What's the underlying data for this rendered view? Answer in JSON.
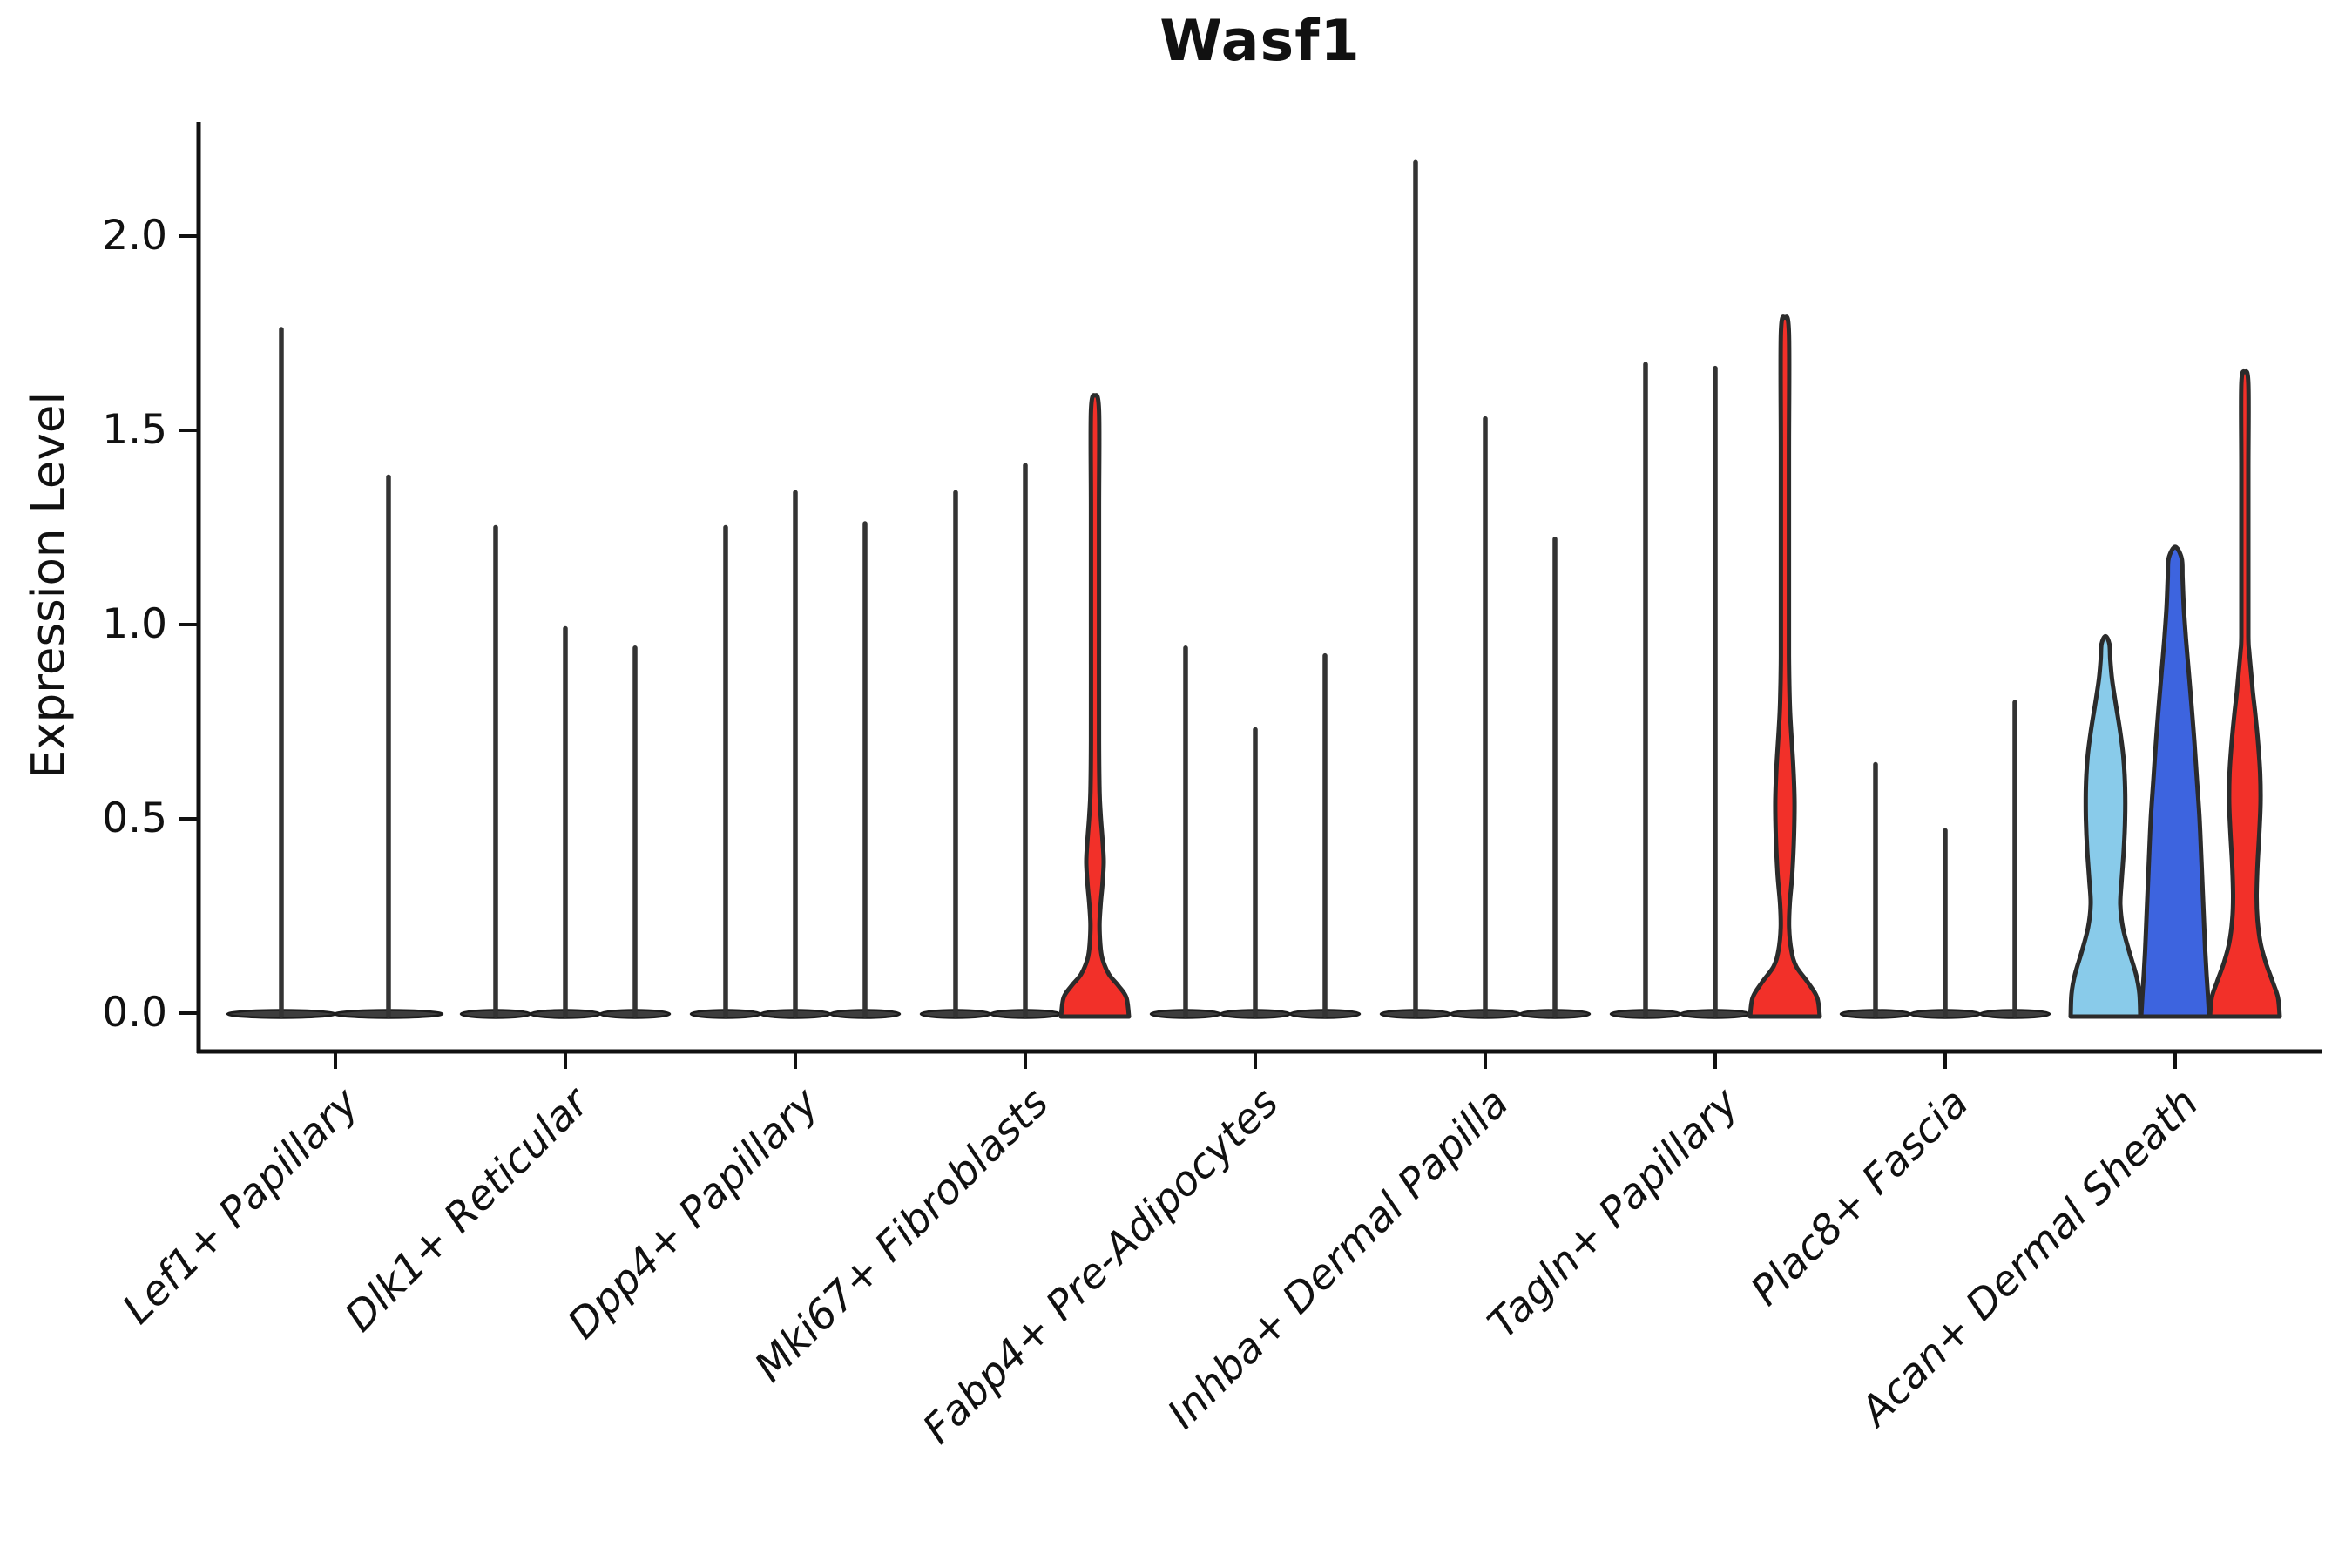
{
  "chart_data": {
    "type": "violin",
    "title": "Wasf1",
    "xlabel": "",
    "ylabel": "Expression Level",
    "ylim": [
      -0.1,
      2.32
    ],
    "yticks": [
      "0.0",
      "0.5",
      "1.0",
      "1.5",
      "2.0"
    ],
    "grid": false,
    "legend": false,
    "categories": [
      "Lef1+ Papillary",
      "Dlk1+ Reticular",
      "Dpp4+ Papillary",
      "Mki67+ Fibroblasts",
      "Fabp4+ Pre-Adipocytes",
      "Inhba+ Dermal Papilla",
      "Tagln+ Papillary",
      "Plac8+ Fascia",
      "Acan+ Dermal Sheath"
    ],
    "colors": {
      "red": "#f23029",
      "dark_blue": "#3d64df",
      "light_blue": "#89cbea",
      "spike": "#333333",
      "pancake": "#3d3d3d",
      "pancake_edge": "#1c1c1c",
      "violin_edge": "#2b2b2b",
      "axis": "#111111"
    },
    "groups": [
      {
        "category": "Lef1+ Papillary",
        "violins": [
          {
            "style": "spike",
            "max": 1.76
          },
          {
            "style": "spike",
            "max": 1.38
          }
        ]
      },
      {
        "category": "Dlk1+ Reticular",
        "violins": [
          {
            "style": "spike",
            "max": 1.25
          },
          {
            "style": "spike",
            "max": 0.99
          },
          {
            "style": "spike",
            "max": 0.94
          }
        ]
      },
      {
        "category": "Dpp4+ Papillary",
        "violins": [
          {
            "style": "spike",
            "max": 1.25
          },
          {
            "style": "spike",
            "max": 1.34
          },
          {
            "style": "spike",
            "max": 1.26
          }
        ]
      },
      {
        "category": "Mki67+ Fibroblasts",
        "violins": [
          {
            "style": "spike",
            "max": 1.34
          },
          {
            "style": "spike",
            "max": 1.41
          },
          {
            "style": "violin",
            "fill": "red",
            "max": 1.59,
            "profile": "mki67_red"
          }
        ]
      },
      {
        "category": "Fabp4+ Pre-Adipocytes",
        "violins": [
          {
            "style": "spike",
            "max": 0.94
          },
          {
            "style": "spike",
            "max": 0.73
          },
          {
            "style": "spike",
            "max": 0.92
          }
        ]
      },
      {
        "category": "Inhba+ Dermal Papilla",
        "violins": [
          {
            "style": "spike",
            "max": 2.19
          },
          {
            "style": "spike",
            "max": 1.53
          },
          {
            "style": "spike",
            "max": 1.22
          }
        ]
      },
      {
        "category": "Tagln+ Papillary",
        "violins": [
          {
            "style": "spike",
            "max": 1.67
          },
          {
            "style": "spike",
            "max": 1.66
          },
          {
            "style": "violin",
            "fill": "red",
            "max": 1.79,
            "profile": "tagln_red"
          }
        ]
      },
      {
        "category": "Plac8+ Fascia",
        "violins": [
          {
            "style": "spike",
            "max": 0.64
          },
          {
            "style": "spike",
            "max": 0.47
          },
          {
            "style": "spike",
            "max": 0.8
          }
        ]
      },
      {
        "category": "Acan+ Dermal Sheath",
        "violins": [
          {
            "style": "violin",
            "fill": "light_blue",
            "max": 0.97,
            "profile": "acan_light_blue"
          },
          {
            "style": "violin",
            "fill": "dark_blue",
            "max": 1.2,
            "profile": "acan_dark_blue"
          },
          {
            "style": "violin",
            "fill": "red",
            "max": 1.65,
            "profile": "acan_red"
          }
        ]
      }
    ],
    "profiles": {
      "mki67_red": [
        [
          0,
          39
        ],
        [
          0.04,
          36
        ],
        [
          0.07,
          27
        ],
        [
          0.1,
          16
        ],
        [
          0.14,
          8.5
        ],
        [
          0.18,
          6
        ],
        [
          0.23,
          5.2
        ],
        [
          0.28,
          6.5
        ],
        [
          0.33,
          8.5
        ],
        [
          0.39,
          10
        ],
        [
          0.45,
          8.5
        ],
        [
          0.51,
          6.5
        ],
        [
          0.57,
          5.2
        ],
        [
          0.7,
          4.6
        ],
        [
          1.0,
          4.6
        ],
        [
          1.3,
          4.6
        ],
        [
          1.55,
          4.6
        ],
        [
          1.59,
          0
        ]
      ],
      "tagln_red": [
        [
          0,
          40
        ],
        [
          0.04,
          37
        ],
        [
          0.08,
          26
        ],
        [
          0.12,
          13
        ],
        [
          0.16,
          7.5
        ],
        [
          0.22,
          4.8
        ],
        [
          0.28,
          5.5
        ],
        [
          0.36,
          8.5
        ],
        [
          0.46,
          10.5
        ],
        [
          0.55,
          11
        ],
        [
          0.64,
          9.5
        ],
        [
          0.73,
          7
        ],
        [
          0.8,
          5.5
        ],
        [
          0.92,
          4.6
        ],
        [
          1.15,
          4.6
        ],
        [
          1.45,
          4.6
        ],
        [
          1.75,
          4.6
        ],
        [
          1.79,
          0
        ]
      ],
      "acan_light_blue": [
        [
          0,
          40
        ],
        [
          0.05,
          39
        ],
        [
          0.1,
          35
        ],
        [
          0.16,
          27
        ],
        [
          0.22,
          20
        ],
        [
          0.28,
          17
        ],
        [
          0.34,
          18.5
        ],
        [
          0.42,
          21
        ],
        [
          0.5,
          22.5
        ],
        [
          0.58,
          22.5
        ],
        [
          0.66,
          20.5
        ],
        [
          0.73,
          16.5
        ],
        [
          0.8,
          11.5
        ],
        [
          0.86,
          7.5
        ],
        [
          0.91,
          5.5
        ],
        [
          0.95,
          4.5
        ],
        [
          0.97,
          0
        ]
      ],
      "acan_dark_blue": [
        [
          0,
          39
        ],
        [
          0.05,
          37.5
        ],
        [
          0.1,
          36
        ],
        [
          0.16,
          34.5
        ],
        [
          0.24,
          33
        ],
        [
          0.32,
          31.5
        ],
        [
          0.4,
          30
        ],
        [
          0.5,
          28
        ],
        [
          0.6,
          25
        ],
        [
          0.7,
          22
        ],
        [
          0.8,
          18.5
        ],
        [
          0.88,
          15.5
        ],
        [
          0.96,
          12.5
        ],
        [
          1.04,
          10
        ],
        [
          1.12,
          8.5
        ],
        [
          1.17,
          7.5
        ],
        [
          1.2,
          0
        ]
      ],
      "acan_red": [
        [
          0,
          40
        ],
        [
          0.04,
          38
        ],
        [
          0.08,
          32
        ],
        [
          0.13,
          24
        ],
        [
          0.18,
          18
        ],
        [
          0.24,
          14.5
        ],
        [
          0.3,
          13.5
        ],
        [
          0.38,
          14.5
        ],
        [
          0.46,
          16.5
        ],
        [
          0.54,
          18
        ],
        [
          0.62,
          17.5
        ],
        [
          0.7,
          15
        ],
        [
          0.77,
          12
        ],
        [
          0.83,
          9
        ],
        [
          0.88,
          7
        ],
        [
          0.93,
          5
        ],
        [
          0.97,
          4
        ],
        [
          1.15,
          4
        ],
        [
          1.4,
          4
        ],
        [
          1.62,
          4
        ],
        [
          1.65,
          0
        ]
      ]
    }
  }
}
